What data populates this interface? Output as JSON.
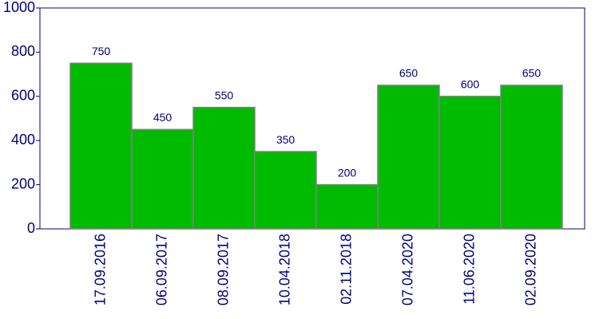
{
  "chart_data": {
    "type": "bar",
    "categories": [
      "17.09.2016",
      "06.09.2017",
      "08.09.2017",
      "10.04.2018",
      "02.11.2018",
      "07.04.2020",
      "11.06.2020",
      "02.09.2020"
    ],
    "values": [
      750,
      450,
      550,
      350,
      200,
      650,
      600,
      650
    ],
    "color": "#00bb00",
    "ylim": [
      0,
      1000
    ],
    "yticks": [
      0,
      200,
      400,
      600,
      800,
      1000
    ],
    "grid": false
  }
}
